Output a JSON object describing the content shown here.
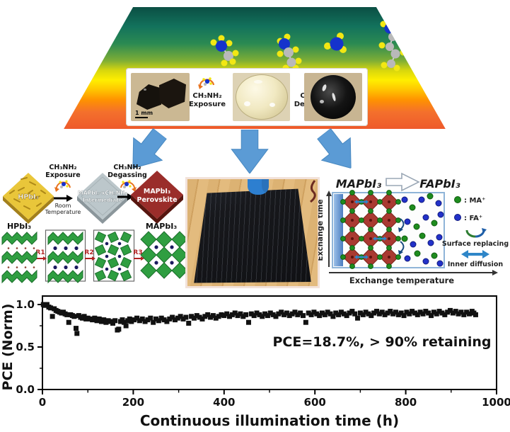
{
  "hero": {
    "scalebar": "1 mm",
    "exposure_line1": "CH₃NH₂",
    "exposure_line2": "Exposure",
    "degas_line1": "CH₃NH₂",
    "degas_line2": "Degassing"
  },
  "scheme": {
    "precursor": "HPbI₃",
    "step1_top1": "CH₃NH₂",
    "step1_top2": "Exposure",
    "step1_bot1": "Room",
    "step1_bot2": "Temperature",
    "intermediate_line1": "MAPbI₃·xCH₃NH₂",
    "intermediate_line2": "Intermediate",
    "step2_top1": "CH₃NH₂",
    "step2_top2": "Degassing",
    "product_line1": "MAPbI₃",
    "product_line2": "Perovskite",
    "crystal_left_label": "HPbI₃",
    "crystal_right_label": "MAPbI₃",
    "r1": "R1",
    "r2": "R2",
    "r3": "R3"
  },
  "exchange": {
    "title_left": "MAPbI₃",
    "title_right": "FAPbI₃",
    "legend_ma": ": MA⁺",
    "legend_fa": ": FA⁺",
    "legend_surface": "Surface replacing",
    "legend_inner": "Inner diffusion",
    "axis_y": "Exchange time",
    "axis_x": "Exchange temperature"
  },
  "icons": {
    "down_arrow": "block-down-arrow",
    "cycle_arrow": "curved-orange-arrow",
    "molecule": "ball-and-stick-molecule",
    "double_arrow": "horizontal-double-arrow",
    "surface_curve": "curved-exchange-arrow"
  },
  "colors": {
    "arrow_blue": "#5b9bd5",
    "diamond_yellow": "#e9c63a",
    "diamond_gray": "#bcc7cb",
    "diamond_red": "#9a2d2a",
    "octahedra_green": "#2f9e41",
    "octahedra_red": "#a93a31",
    "ion_green": "#1e8c1e",
    "ion_blue": "#2231c9",
    "marker_black": "#111111"
  },
  "chart_data": {
    "type": "scatter",
    "marker": "square",
    "color": "#111111",
    "xlabel": "Continuous illumination time (h)",
    "ylabel": "PCE (Norm)",
    "annotation": "PCE=18.7%, > 90% retaining",
    "xlim": [
      0,
      1000
    ],
    "ylim": [
      0,
      1.1
    ],
    "xticks": [
      0,
      200,
      400,
      600,
      800,
      1000
    ],
    "xminor": [
      100,
      300,
      500,
      700,
      900
    ],
    "yticks": [
      0.0,
      0.5,
      1.0
    ],
    "ytick_labels": [
      "0.0",
      "0.5",
      "1.0"
    ],
    "yminor": [
      0.25,
      0.75
    ],
    "grid": false,
    "points": [
      [
        2,
        1.0
      ],
      [
        6,
        0.99
      ],
      [
        10,
        1.0
      ],
      [
        14,
        0.97
      ],
      [
        18,
        0.96
      ],
      [
        22,
        0.86
      ],
      [
        26,
        0.95
      ],
      [
        30,
        0.93
      ],
      [
        34,
        0.92
      ],
      [
        38,
        0.91
      ],
      [
        42,
        0.9
      ],
      [
        46,
        0.91
      ],
      [
        50,
        0.89
      ],
      [
        54,
        0.88
      ],
      [
        58,
        0.79
      ],
      [
        62,
        0.88
      ],
      [
        66,
        0.87
      ],
      [
        70,
        0.86
      ],
      [
        74,
        0.72
      ],
      [
        76,
        0.66
      ],
      [
        80,
        0.87
      ],
      [
        84,
        0.85
      ],
      [
        88,
        0.84
      ],
      [
        92,
        0.86
      ],
      [
        96,
        0.83
      ],
      [
        100,
        0.84
      ],
      [
        105,
        0.83
      ],
      [
        110,
        0.82
      ],
      [
        115,
        0.84
      ],
      [
        120,
        0.81
      ],
      [
        125,
        0.83
      ],
      [
        130,
        0.8
      ],
      [
        135,
        0.82
      ],
      [
        140,
        0.79
      ],
      [
        145,
        0.81
      ],
      [
        150,
        0.8
      ],
      [
        155,
        0.78
      ],
      [
        160,
        0.81
      ],
      [
        165,
        0.7
      ],
      [
        168,
        0.71
      ],
      [
        172,
        0.8
      ],
      [
        176,
        0.82
      ],
      [
        180,
        0.79
      ],
      [
        184,
        0.75
      ],
      [
        188,
        0.81
      ],
      [
        192,
        0.83
      ],
      [
        196,
        0.8
      ],
      [
        202,
        0.82
      ],
      [
        208,
        0.84
      ],
      [
        214,
        0.81
      ],
      [
        220,
        0.83
      ],
      [
        226,
        0.8
      ],
      [
        232,
        0.82
      ],
      [
        238,
        0.84
      ],
      [
        244,
        0.79
      ],
      [
        250,
        0.83
      ],
      [
        256,
        0.81
      ],
      [
        262,
        0.84
      ],
      [
        268,
        0.82
      ],
      [
        274,
        0.8
      ],
      [
        280,
        0.83
      ],
      [
        286,
        0.85
      ],
      [
        292,
        0.82
      ],
      [
        298,
        0.84
      ],
      [
        304,
        0.86
      ],
      [
        310,
        0.83
      ],
      [
        316,
        0.85
      ],
      [
        322,
        0.78
      ],
      [
        328,
        0.86
      ],
      [
        334,
        0.84
      ],
      [
        340,
        0.87
      ],
      [
        346,
        0.85
      ],
      [
        352,
        0.83
      ],
      [
        358,
        0.86
      ],
      [
        364,
        0.88
      ],
      [
        370,
        0.85
      ],
      [
        376,
        0.87
      ],
      [
        382,
        0.84
      ],
      [
        388,
        0.86
      ],
      [
        394,
        0.88
      ],
      [
        400,
        0.87
      ],
      [
        406,
        0.89
      ],
      [
        412,
        0.86
      ],
      [
        418,
        0.88
      ],
      [
        424,
        0.9
      ],
      [
        430,
        0.87
      ],
      [
        436,
        0.89
      ],
      [
        442,
        0.86
      ],
      [
        448,
        0.88
      ],
      [
        454,
        0.79
      ],
      [
        460,
        0.89
      ],
      [
        466,
        0.87
      ],
      [
        472,
        0.9
      ],
      [
        478,
        0.88
      ],
      [
        484,
        0.86
      ],
      [
        490,
        0.89
      ],
      [
        496,
        0.87
      ],
      [
        502,
        0.9
      ],
      [
        508,
        0.88
      ],
      [
        514,
        0.86
      ],
      [
        520,
        0.89
      ],
      [
        526,
        0.91
      ],
      [
        532,
        0.88
      ],
      [
        538,
        0.9
      ],
      [
        544,
        0.87
      ],
      [
        550,
        0.89
      ],
      [
        556,
        0.91
      ],
      [
        562,
        0.88
      ],
      [
        568,
        0.9
      ],
      [
        574,
        0.87
      ],
      [
        580,
        0.79
      ],
      [
        586,
        0.9
      ],
      [
        592,
        0.88
      ],
      [
        598,
        0.91
      ],
      [
        604,
        0.89
      ],
      [
        610,
        0.87
      ],
      [
        616,
        0.9
      ],
      [
        622,
        0.88
      ],
      [
        628,
        0.91
      ],
      [
        634,
        0.89
      ],
      [
        640,
        0.86
      ],
      [
        646,
        0.9
      ],
      [
        652,
        0.88
      ],
      [
        658,
        0.91
      ],
      [
        664,
        0.89
      ],
      [
        670,
        0.87
      ],
      [
        676,
        0.9
      ],
      [
        682,
        0.92
      ],
      [
        688,
        0.89
      ],
      [
        694,
        0.84
      ],
      [
        700,
        0.9
      ],
      [
        706,
        0.88
      ],
      [
        712,
        0.91
      ],
      [
        718,
        0.89
      ],
      [
        724,
        0.87
      ],
      [
        730,
        0.9
      ],
      [
        736,
        0.92
      ],
      [
        742,
        0.89
      ],
      [
        748,
        0.91
      ],
      [
        754,
        0.88
      ],
      [
        760,
        0.9
      ],
      [
        766,
        0.92
      ],
      [
        772,
        0.89
      ],
      [
        778,
        0.91
      ],
      [
        784,
        0.88
      ],
      [
        790,
        0.9
      ],
      [
        796,
        0.87
      ],
      [
        802,
        0.91
      ],
      [
        808,
        0.89
      ],
      [
        814,
        0.92
      ],
      [
        820,
        0.9
      ],
      [
        826,
        0.88
      ],
      [
        832,
        0.91
      ],
      [
        838,
        0.89
      ],
      [
        844,
        0.92
      ],
      [
        850,
        0.9
      ],
      [
        856,
        0.87
      ],
      [
        862,
        0.91
      ],
      [
        868,
        0.89
      ],
      [
        874,
        0.92
      ],
      [
        880,
        0.9
      ],
      [
        886,
        0.88
      ],
      [
        892,
        0.91
      ],
      [
        898,
        0.93
      ],
      [
        904,
        0.9
      ],
      [
        910,
        0.92
      ],
      [
        916,
        0.89
      ],
      [
        922,
        0.91
      ],
      [
        928,
        0.88
      ],
      [
        934,
        0.91
      ],
      [
        940,
        0.89
      ],
      [
        946,
        0.92
      ],
      [
        950,
        0.9
      ],
      [
        954,
        0.88
      ]
    ]
  }
}
